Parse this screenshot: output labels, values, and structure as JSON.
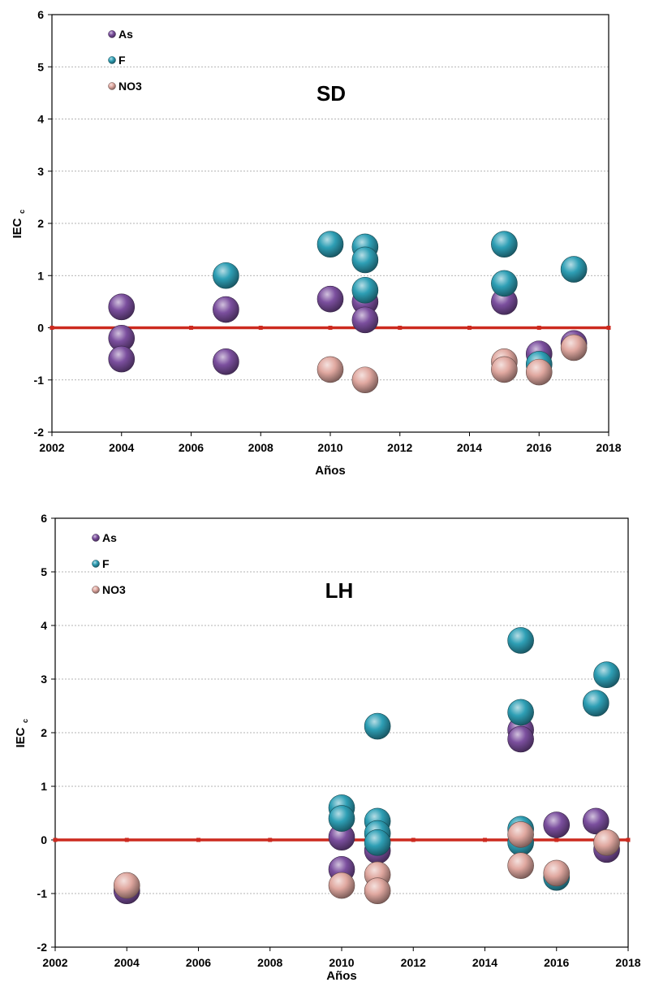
{
  "chart_data": [
    {
      "type": "scatter",
      "title": "SD",
      "xlabel": "Años",
      "ylabel": "IEC",
      "ylabel_sub": "c",
      "xlim": [
        2002,
        2018
      ],
      "ylim": [
        -2,
        6
      ],
      "xticks": [
        2002,
        2004,
        2006,
        2008,
        2010,
        2012,
        2014,
        2016,
        2018
      ],
      "yticks": [
        -2,
        -1,
        0,
        1,
        2,
        3,
        4,
        5,
        6
      ],
      "grid": "horizontal dashed",
      "legend_position": "top-left",
      "reference_line": {
        "y": 0,
        "color": "#cc2a1f"
      },
      "series": [
        {
          "name": "As",
          "color": "#7b4f9e",
          "points": [
            [
              2004,
              0.4
            ],
            [
              2004,
              -0.2
            ],
            [
              2004,
              -0.6
            ],
            [
              2007,
              0.35
            ],
            [
              2007,
              -0.65
            ],
            [
              2010,
              0.55
            ],
            [
              2011,
              0.5
            ],
            [
              2011,
              0.15
            ],
            [
              2015,
              0.5
            ],
            [
              2016,
              -0.5
            ],
            [
              2017,
              -0.3
            ]
          ]
        },
        {
          "name": "F",
          "color": "#2e9fb5",
          "points": [
            [
              2007,
              1.0
            ],
            [
              2010,
              1.6
            ],
            [
              2011,
              1.55
            ],
            [
              2011,
              1.3
            ],
            [
              2011,
              0.72
            ],
            [
              2015,
              1.6
            ],
            [
              2015,
              0.85
            ],
            [
              2016,
              -0.7
            ],
            [
              2017,
              1.12
            ]
          ]
        },
        {
          "name": "NO3",
          "color": "#e0a8a0",
          "points": [
            [
              2010,
              -0.8
            ],
            [
              2011,
              -1.0
            ],
            [
              2015,
              -0.65
            ],
            [
              2015,
              -0.8
            ],
            [
              2016,
              -0.85
            ],
            [
              2017,
              -0.38
            ]
          ]
        }
      ]
    },
    {
      "type": "scatter",
      "title": "LH",
      "xlabel": "Años",
      "ylabel": "IEC",
      "ylabel_sub": "c",
      "xlim": [
        2002,
        2018
      ],
      "ylim": [
        -2,
        6
      ],
      "xticks": [
        2002,
        2004,
        2006,
        2008,
        2010,
        2012,
        2014,
        2016,
        2018
      ],
      "yticks": [
        -2,
        -1,
        0,
        1,
        2,
        3,
        4,
        5,
        6
      ],
      "grid": "horizontal dashed",
      "legend_position": "top-left",
      "reference_line": {
        "y": 0,
        "color": "#cc2a1f"
      },
      "series": [
        {
          "name": "As",
          "color": "#7b4f9e",
          "points": [
            [
              2004,
              -0.95
            ],
            [
              2010,
              0.05
            ],
            [
              2010,
              -0.55
            ],
            [
              2011,
              -0.2
            ],
            [
              2015,
              2.05
            ],
            [
              2015,
              1.88
            ],
            [
              2016,
              0.28
            ],
            [
              2017.1,
              0.35
            ],
            [
              2017.4,
              -0.18
            ]
          ]
        },
        {
          "name": "F",
          "color": "#2e9fb5",
          "points": [
            [
              2010,
              0.6
            ],
            [
              2010,
              0.4
            ],
            [
              2011,
              2.12
            ],
            [
              2011,
              0.35
            ],
            [
              2011,
              0.12
            ],
            [
              2011,
              -0.05
            ],
            [
              2015,
              3.72
            ],
            [
              2015,
              2.38
            ],
            [
              2015,
              0.2
            ],
            [
              2015,
              -0.05
            ],
            [
              2016,
              -0.7
            ],
            [
              2017.1,
              2.55
            ],
            [
              2017.4,
              3.08
            ]
          ]
        },
        {
          "name": "NO3",
          "color": "#e0a8a0",
          "points": [
            [
              2004,
              -0.85
            ],
            [
              2010,
              -0.85
            ],
            [
              2011,
              -0.65
            ],
            [
              2011,
              -0.95
            ],
            [
              2015,
              0.1
            ],
            [
              2015,
              -0.48
            ],
            [
              2016,
              -0.62
            ],
            [
              2017.4,
              -0.05
            ]
          ]
        }
      ]
    }
  ]
}
